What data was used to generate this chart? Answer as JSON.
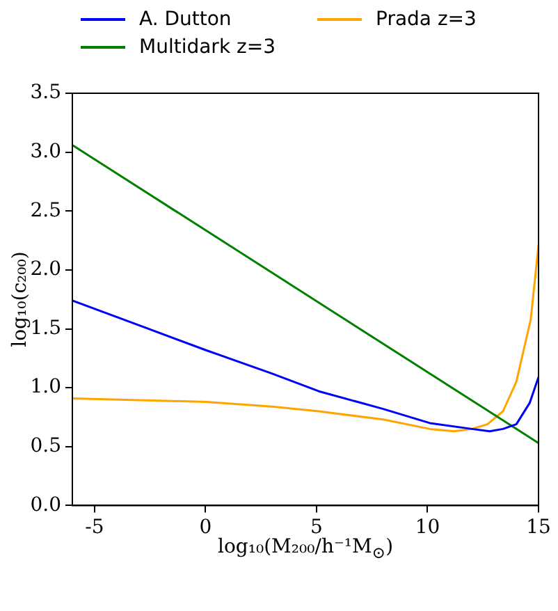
{
  "chart_data": {
    "type": "line",
    "xlabel": "log₁₀(M₂₀₀/h⁻¹M$_{⊙}$)",
    "ylabel": "log₁₀(c₂₀₀)",
    "xlim": [
      -6,
      15
    ],
    "xticks": [
      -5,
      0,
      5,
      10,
      15
    ],
    "ylim": [
      0,
      3.5
    ],
    "yticks": [
      {
        "value": 0,
        "label": "0.0"
      },
      {
        "value": 0.5,
        "label": "0.5"
      },
      {
        "value": 1,
        "label": "1.0"
      },
      {
        "value": 1.5,
        "label": "1.5"
      },
      {
        "value": 2,
        "label": "2.0"
      },
      {
        "value": 2.5,
        "label": "2.5"
      },
      {
        "value": 3,
        "label": "3.0"
      },
      {
        "value": 3.5,
        "label": "3.5"
      }
    ],
    "grid": false,
    "legend": "top",
    "marker": "none",
    "series": [
      {
        "name": "A. Dutton",
        "color": "#0000ff",
        "x": [
          -6,
          -3,
          0,
          3,
          5.1,
          8,
          10.1,
          12,
          12.8,
          13.4,
          14,
          14.6,
          15
        ],
        "values": [
          1.74,
          1.53,
          1.32,
          1.12,
          0.97,
          0.82,
          0.7,
          0.65,
          0.63,
          0.65,
          0.69,
          0.87,
          1.09
        ]
      },
      {
        "name": "Multidark z=3",
        "color": "#008000",
        "x": [
          -6,
          15
        ],
        "values": [
          3.06,
          0.53
        ]
      },
      {
        "name": "Prada z=3",
        "color": "#ffa500",
        "x": [
          -6,
          0,
          3,
          5.1,
          8,
          10.1,
          11.2,
          12,
          12.7,
          13.4,
          14,
          14.65,
          15
        ],
        "values": [
          0.91,
          0.88,
          0.84,
          0.8,
          0.73,
          0.65,
          0.63,
          0.65,
          0.69,
          0.8,
          1.05,
          1.58,
          2.21
        ]
      }
    ]
  }
}
